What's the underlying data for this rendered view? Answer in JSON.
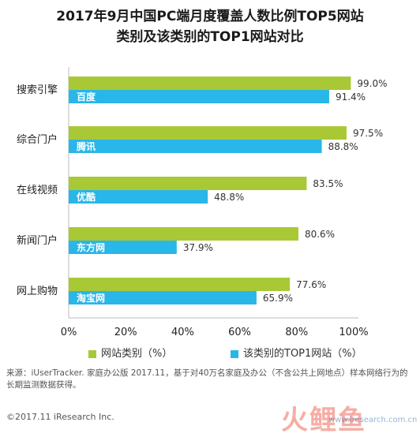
{
  "title_lines": [
    "2017年9月中国PC端月度覆盖人数比例TOP5网站",
    "类别及该类别的TOP1网站对比"
  ],
  "chart_data": {
    "type": "bar",
    "orientation": "horizontal",
    "categories": [
      "搜索引擎",
      "综合门户",
      "在线视频",
      "新闻门户",
      "网上购物"
    ],
    "series": [
      {
        "name": "网站类别（%）",
        "color": "#a8c935",
        "values": [
          99.0,
          97.5,
          83.5,
          80.6,
          77.6
        ],
        "labels": [
          "99.0%",
          "97.5%",
          "83.5%",
          "80.6%",
          "77.6%"
        ]
      },
      {
        "name": "该类别的TOP1网站（%）",
        "color": "#29b6e8",
        "values": [
          91.4,
          88.8,
          48.8,
          37.9,
          65.9
        ],
        "labels": [
          "91.4%",
          "88.8%",
          "48.8%",
          "37.9%",
          "65.9%"
        ],
        "bar_text": [
          "百度",
          "腾讯",
          "优酷",
          "东方网",
          "淘宝网"
        ]
      }
    ],
    "xlim": [
      0,
      100
    ],
    "xticks": [
      "0%",
      "20%",
      "40%",
      "60%",
      "80%",
      "100%"
    ],
    "grid": false,
    "legend_position": "bottom"
  },
  "legend": [
    {
      "label": "网站类别（%）",
      "color": "#a8c935"
    },
    {
      "label": "该类别的TOP1网站（%）",
      "color": "#29b6e8"
    }
  ],
  "source_text": "来源：iUserTracker. 家庭办公版 2017.11，基于对40万名家庭及办公（不含公共上网地点）样本网络行为的长期监测数据获得。",
  "copyright": "©2017.11 iResearch Inc.",
  "watermark": {
    "cn": "火鲤鱼",
    "en": "www.iresearch.com.cn"
  }
}
